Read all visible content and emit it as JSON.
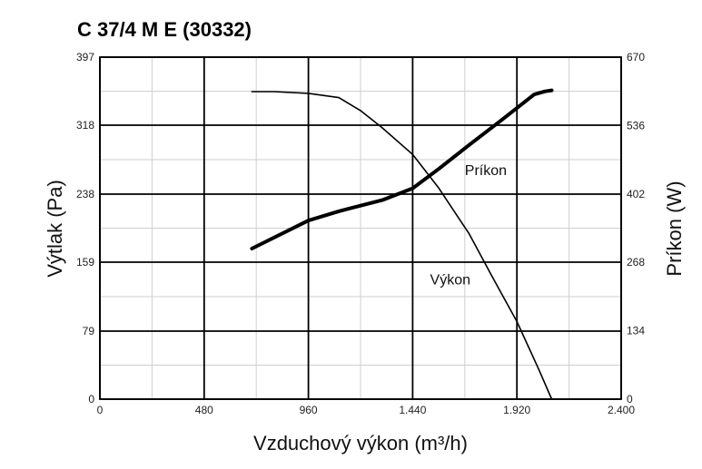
{
  "chart_data": {
    "type": "line",
    "title": "C 37/4  M E (30332)",
    "xlabel": "Vzduchový výkon (m³/h)",
    "ylabel": "Výtlak (Pa)",
    "y2label": "Príkon (W)",
    "xlim": [
      0,
      2400
    ],
    "ylim": [
      0,
      397
    ],
    "y2lim": [
      0,
      670
    ],
    "x_ticks": [
      0,
      480,
      960,
      1440,
      1920,
      2400
    ],
    "x_tick_labels": [
      "0",
      "480",
      "960",
      "1.440",
      "1.920",
      "2.400"
    ],
    "y_ticks": [
      0,
      79,
      159,
      238,
      318,
      397
    ],
    "y_tick_labels": [
      "0",
      "79",
      "159",
      "238",
      "318",
      "397"
    ],
    "y2_ticks": [
      0,
      134,
      268,
      402,
      536,
      670
    ],
    "y2_tick_labels": [
      "0",
      "134",
      "268",
      "402",
      "536",
      "670"
    ],
    "grid": true,
    "annotations": [
      {
        "text": "Príkon",
        "x": 1680,
        "y": 260
      },
      {
        "text": "Výkon",
        "x": 1520,
        "y": 133
      }
    ],
    "series": [
      {
        "name": "Výkon",
        "axis": "left",
        "x": [
          700,
          800,
          960,
          1100,
          1200,
          1300,
          1440,
          1560,
          1700,
          1800,
          1920,
          2020,
          2080
        ],
        "y": [
          357,
          357,
          355,
          350,
          335,
          315,
          284,
          245,
          192,
          145,
          90,
          35,
          0
        ]
      },
      {
        "name": "Príkon",
        "axis": "right",
        "x": [
          700,
          960,
          1100,
          1300,
          1440,
          1560,
          1700,
          1850,
          2000,
          2050,
          2080
        ],
        "y": [
          295,
          350,
          368,
          390,
          413,
          451,
          498,
          547,
          597,
          603,
          605
        ]
      }
    ]
  }
}
